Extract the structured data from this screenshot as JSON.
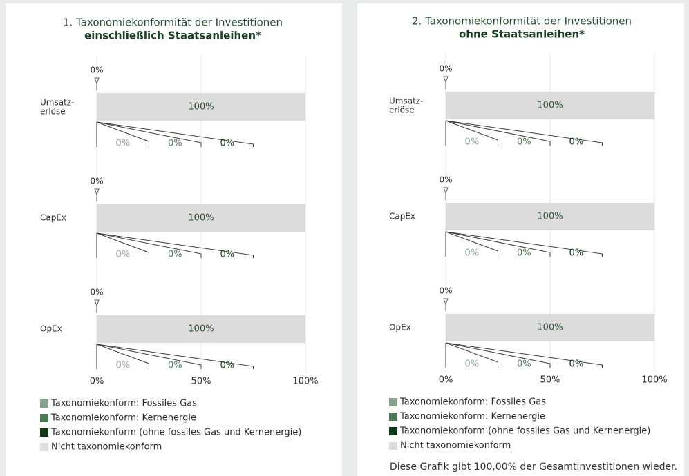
{
  "chart_data": [
    {
      "type": "bar",
      "orientation": "horizontal",
      "stacked": true,
      "title": "1. Taxonomiekonformität der Investitionen",
      "subtitle": "einschließlich Staatsanleihen*",
      "categories": [
        "Umsatz-\nerlöse",
        "CapEx",
        "OpEx"
      ],
      "aligned_total": {
        "values": [
          0,
          0,
          0
        ],
        "value_labels": [
          "0%",
          "0%",
          "0%"
        ]
      },
      "series": [
        {
          "name": "Taxonomiekonform: Fossiles Gas",
          "color": "#86a28c",
          "values": [
            0,
            0,
            0
          ],
          "value_labels": [
            "0%",
            "0%",
            "0%"
          ]
        },
        {
          "name": "Taxonomiekonform: Kernenergie",
          "color": "#4d7b57",
          "values": [
            0,
            0,
            0
          ],
          "value_labels": [
            "0%",
            "0%",
            "0%"
          ]
        },
        {
          "name": "Taxonomiekonform (ohne fossiles Gas und Kernenergie)",
          "color": "#0f3a18",
          "values": [
            0,
            0,
            0
          ],
          "value_labels": [
            "0%",
            "0%",
            "0%"
          ]
        },
        {
          "name": "Nicht taxonomiekonform",
          "color": "#dcdcdc",
          "values": [
            100,
            100,
            100
          ],
          "value_labels": [
            "100%",
            "100%",
            "100%"
          ]
        }
      ],
      "xlim": [
        0,
        100
      ],
      "xticks": [
        {
          "value": 0,
          "label": "0%"
        },
        {
          "value": 50,
          "label": "50%"
        },
        {
          "value": 100,
          "label": "100%"
        }
      ],
      "grid": true,
      "legend": "bottom-left"
    },
    {
      "type": "bar",
      "orientation": "horizontal",
      "stacked": true,
      "title": "2. Taxonomiekonformität der Investitionen",
      "subtitle": "ohne Staatsanleihen*",
      "categories": [
        "Umsatz-\nerlöse",
        "CapEx",
        "OpEx"
      ],
      "aligned_total": {
        "values": [
          0,
          0,
          0
        ],
        "value_labels": [
          "0%",
          "0%",
          "0%"
        ]
      },
      "series": [
        {
          "name": "Taxonomiekonform: Fossiles Gas",
          "color": "#86a28c",
          "values": [
            0,
            0,
            0
          ],
          "value_labels": [
            "0%",
            "0%",
            "0%"
          ]
        },
        {
          "name": "Taxonomiekonform: Kernenergie",
          "color": "#4d7b57",
          "values": [
            0,
            0,
            0
          ],
          "value_labels": [
            "0%",
            "0%",
            "0%"
          ]
        },
        {
          "name": "Taxonomiekonform (ohne fossiles Gas und Kernenergie)",
          "color": "#0f3a18",
          "values": [
            0,
            0,
            0
          ],
          "value_labels": [
            "0%",
            "0%",
            "0%"
          ]
        },
        {
          "name": "Nicht taxonomiekonform",
          "color": "#dcdcdc",
          "values": [
            100,
            100,
            100
          ],
          "value_labels": [
            "100%",
            "100%",
            "100%"
          ]
        }
      ],
      "xlim": [
        0,
        100
      ],
      "xticks": [
        {
          "value": 0,
          "label": "0%"
        },
        {
          "value": 50,
          "label": "50%"
        },
        {
          "value": 100,
          "label": "100%"
        }
      ],
      "grid": true,
      "legend": "bottom-left"
    }
  ],
  "note": "Diese Grafik gibt 100,00% der Gesamtinvestitionen wieder."
}
